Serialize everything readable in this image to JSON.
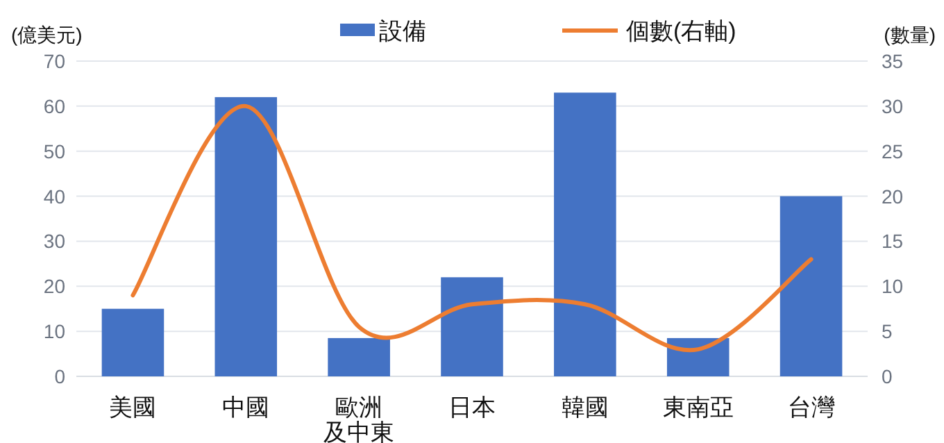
{
  "chart_data": {
    "type": "bar",
    "categories": [
      "美國",
      "中國",
      "歐洲及中東",
      "日本",
      "韓國",
      "東南亞",
      "台灣"
    ],
    "series": [
      {
        "name": "設備",
        "color": "#4472c4",
        "values": [
          15,
          62,
          8.5,
          22,
          63,
          8.5,
          40
        ]
      },
      {
        "name": "個數(右軸)",
        "type": "line",
        "axis": "y2",
        "color": "#ed7d31",
        "values": [
          9,
          30,
          5.5,
          8,
          8,
          3,
          13
        ]
      }
    ],
    "ylabel": "(億美元)",
    "y2label": "(數量)",
    "ylim": [
      0,
      70
    ],
    "yticks": [
      0,
      10,
      20,
      30,
      40,
      50,
      60,
      70
    ],
    "y2lim": [
      0,
      35
    ],
    "y2ticks": [
      0,
      5,
      10,
      15,
      20,
      25,
      30,
      35
    ],
    "grid": "y",
    "legend": "top",
    "marker": "none",
    "line_style": "solid"
  }
}
